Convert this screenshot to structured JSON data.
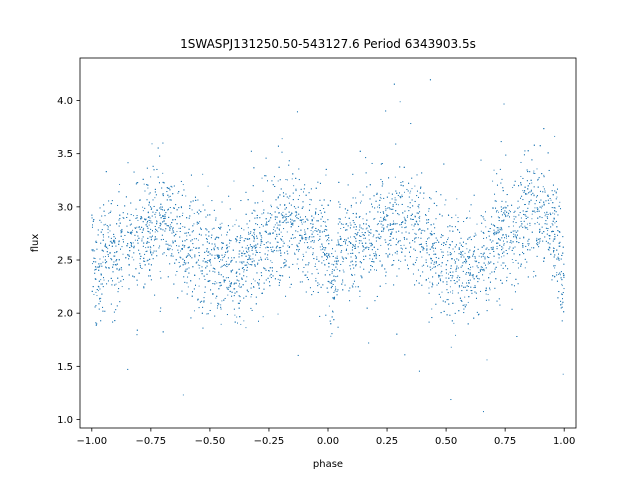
{
  "chart_data": {
    "type": "scatter",
    "title": "1SWASPJ131250.50-543127.6 Period 6343903.5s",
    "xlabel": "phase",
    "ylabel": "flux",
    "xlim": [
      -1.05,
      1.05
    ],
    "ylim": [
      0.92,
      4.4
    ],
    "xticks": [
      -1.0,
      -0.75,
      -0.5,
      -0.25,
      0.0,
      0.25,
      0.5,
      0.75,
      1.0
    ],
    "xtick_labels": [
      "−1.00",
      "−0.75",
      "−0.50",
      "−0.25",
      "0.00",
      "0.25",
      "0.50",
      "0.75",
      "1.00"
    ],
    "yticks": [
      1.0,
      1.5,
      2.0,
      2.5,
      3.0,
      3.5,
      4.0
    ],
    "ytick_labels": [
      "1.0",
      "1.5",
      "2.0",
      "2.5",
      "3.0",
      "3.5",
      "4.0"
    ],
    "grid": false,
    "marker_color": "#1f77b4",
    "series": [
      {
        "x": [
          -1.0,
          -0.98,
          -0.95,
          -0.9,
          -0.85,
          -0.8,
          -0.75,
          -0.7,
          -0.65,
          -0.6,
          -0.55,
          -0.5,
          -0.45,
          -0.4,
          -0.35,
          -0.3,
          -0.25,
          -0.2,
          -0.15,
          -0.1,
          -0.05,
          0.0,
          0.02,
          0.05,
          0.1,
          0.15,
          0.2,
          0.25,
          0.3,
          0.35,
          0.4,
          0.45,
          0.5,
          0.55,
          0.6,
          0.65,
          0.7,
          0.75,
          0.8,
          0.85,
          0.9,
          0.95,
          1.0
        ],
        "y": [
          2.75,
          2.2,
          2.6,
          2.55,
          2.65,
          2.75,
          2.8,
          2.9,
          2.8,
          2.7,
          2.6,
          2.5,
          2.45,
          2.4,
          2.5,
          2.6,
          2.7,
          2.8,
          2.85,
          2.75,
          2.65,
          2.7,
          2.2,
          2.6,
          2.6,
          2.7,
          2.75,
          2.8,
          2.9,
          2.8,
          2.7,
          2.6,
          2.5,
          2.45,
          2.4,
          2.45,
          2.65,
          2.75,
          2.85,
          2.9,
          2.95,
          2.8,
          2.3
        ]
      }
    ]
  }
}
